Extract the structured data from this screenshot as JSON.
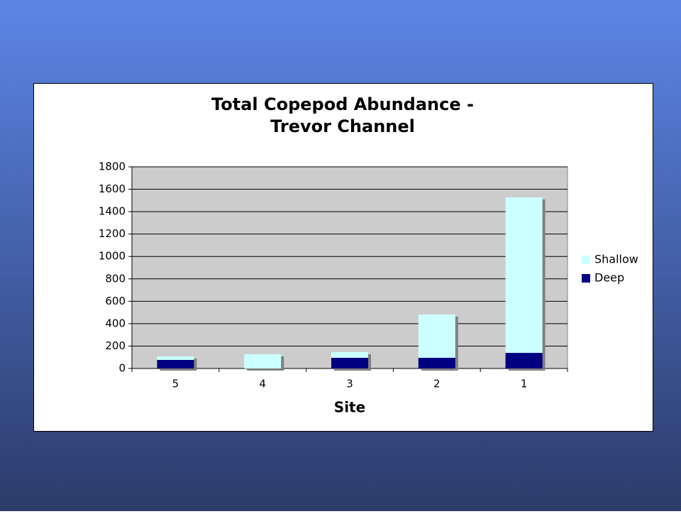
{
  "chart_data": {
    "type": "stacked-bar",
    "title": [
      "Total Copepod Abundance -",
      "Trevor Channel"
    ],
    "x_label": "Site",
    "categories": [
      "5",
      "4",
      "3",
      "2",
      "1"
    ],
    "series": [
      {
        "name": "Deep",
        "color": "#000080",
        "values": [
          76,
          0,
          95,
          95,
          139
        ]
      },
      {
        "name": "Shallow",
        "color": "#ccffff",
        "values": [
          32,
          127,
          51,
          387,
          1389
        ]
      }
    ],
    "ylim": [
      0,
      1800
    ],
    "yticks": [
      0,
      200,
      400,
      600,
      800,
      1000,
      1200,
      1400,
      1600,
      1800
    ],
    "grid": true,
    "legend": "right"
  }
}
